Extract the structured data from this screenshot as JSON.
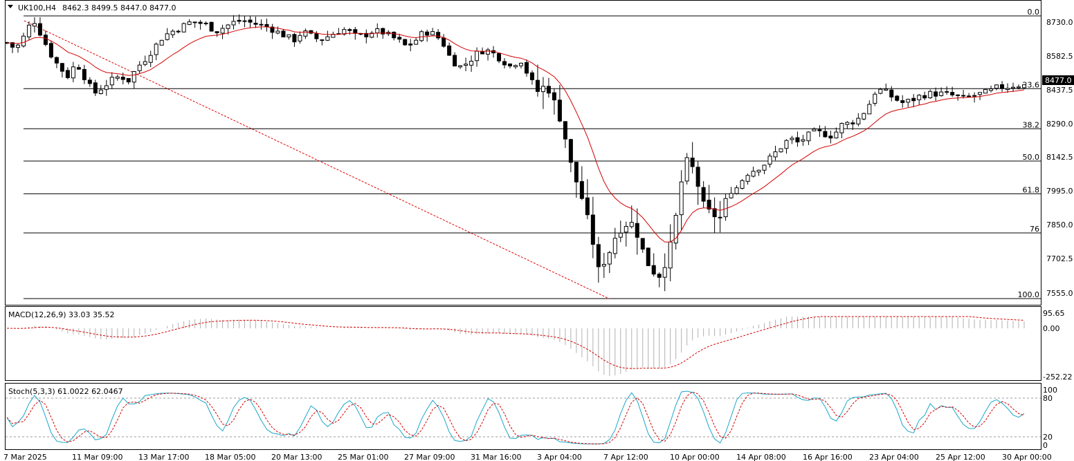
{
  "header": {
    "symbol": "UK100,H4",
    "ohlc": "8462.3 8499.5 8447.0 8477.0"
  },
  "colors": {
    "background": "#ffffff",
    "candle": "#000000",
    "ma_line": "#d40000",
    "fib_line": "#000000",
    "trend_line": "#e00000",
    "macd_hist": "#b0b0b0",
    "macd_signal": "#d40000",
    "stoch_main": "#1aa7c8",
    "stoch_signal": "#d40000",
    "price_tag_bg": "#000000",
    "price_tag_text": "#ffffff"
  },
  "main_price_axis": [
    "8730.0",
    "8582.5",
    "8437.5",
    "8290.0",
    "8142.5",
    "7995.0",
    "7850.0",
    "7702.5",
    "7555.0"
  ],
  "current_price_label": "8477.0",
  "fibonacci_levels": [
    {
      "label": "0.0",
      "price": 8790
    },
    {
      "label": "23.6",
      "price": 8463
    },
    {
      "label": "38.2",
      "price": 8283
    },
    {
      "label": "50.0",
      "price": 8138
    },
    {
      "label": "61.8",
      "price": 7991
    },
    {
      "label": "76",
      "price": 7815
    },
    {
      "label": "100.0",
      "price": 7520
    }
  ],
  "macd": {
    "label": "MACD(12,26,9) 33.03 35.52",
    "axis": [
      "95.65",
      "0.00",
      "-252.22"
    ]
  },
  "stoch": {
    "label": "Stoch(5,3,3) 61.0022 62.0467",
    "axis": [
      "100",
      "80",
      "20",
      "0"
    ]
  },
  "time_axis": [
    "7 Mar 2025",
    "11 Mar 09:00",
    "13 Mar 17:00",
    "18 Mar 05:00",
    "20 Mar 13:00",
    "25 Mar 01:00",
    "27 Mar 09:00",
    "31 Mar 16:00",
    "3 Apr 04:00",
    "7 Apr 12:00",
    "10 Apr 00:00",
    "14 Apr 08:00",
    "16 Apr 16:00",
    "23 Apr 04:00",
    "25 Apr 12:00",
    "30 Apr 00:00"
  ],
  "chart_data": {
    "type": "candlestick",
    "title": "UK100,H4",
    "ylim": [
      7520,
      8820
    ],
    "anchors": [
      8670,
      8640,
      8700,
      8780,
      8700,
      8620,
      8560,
      8520,
      8580,
      8510,
      8440,
      8470,
      8500,
      8520,
      8500,
      8560,
      8600,
      8650,
      8700,
      8720,
      8740,
      8760,
      8760,
      8750,
      8720,
      8740,
      8760,
      8770,
      8760,
      8750,
      8740,
      8720,
      8700,
      8680,
      8720,
      8700,
      8680,
      8700,
      8720,
      8730,
      8700,
      8700,
      8720,
      8720,
      8700,
      8680,
      8650,
      8680,
      8720,
      8710,
      8680,
      8600,
      8560,
      8580,
      8620,
      8640,
      8620,
      8590,
      8560,
      8600,
      8520,
      8450,
      8480,
      8400,
      8280,
      8100,
      7990,
      7850,
      7650,
      7700,
      7800,
      7850,
      7860,
      7750,
      7650,
      7620,
      7700,
      7900,
      8150,
      8100,
      7950,
      7900,
      7880,
      8000,
      8020,
      8080,
      8100,
      8120,
      8160,
      8200,
      8240,
      8220,
      8250,
      8270,
      8260,
      8250,
      8300,
      8310,
      8330,
      8380,
      8460,
      8450,
      8420,
      8400,
      8410,
      8430,
      8440,
      8440,
      8440,
      8430,
      8420,
      8430,
      8440,
      8450,
      8470,
      8470,
      8480,
      8477
    ],
    "candle_count": 185,
    "moving_average": "red line",
    "drawings": [
      "horizontal Fibonacci retracement levels",
      "dashed red trend line"
    ]
  }
}
